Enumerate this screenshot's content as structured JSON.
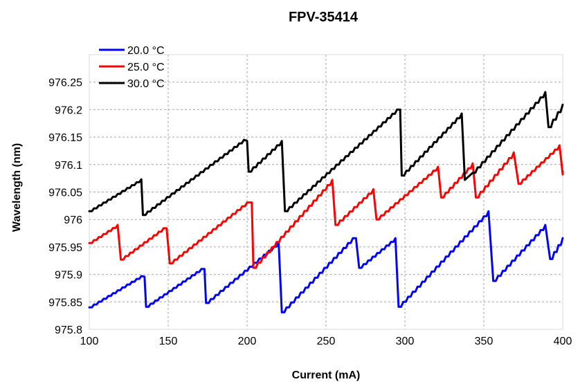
{
  "chart_data": {
    "type": "line",
    "title": "FPV-35414",
    "xlabel": "Current (mA)",
    "ylabel": "Wavelength (nm)",
    "xlim": [
      100,
      400
    ],
    "ylim": [
      975.8,
      976.3
    ],
    "xticks": [
      100,
      150,
      200,
      250,
      300,
      350,
      400
    ],
    "xtick_labels": [
      "100",
      "150",
      "200",
      "250",
      "300",
      "350",
      "400"
    ],
    "yticks": [
      975.8,
      975.85,
      975.9,
      975.95,
      976.0,
      976.05,
      976.1,
      976.15,
      976.2,
      976.25
    ],
    "ytick_labels": [
      "975.8",
      "975.85",
      "975.9",
      "975.95",
      "976",
      "976.05",
      "976.1",
      "976.15",
      "976.2",
      "976.25"
    ],
    "grid": true,
    "legend_position": "top-left",
    "series": [
      {
        "name": "20.0 °C",
        "color": "#0000ff",
        "segments": [
          [
            [
              100,
              975.84
            ],
            [
              133,
              975.897
            ],
            [
              135,
              975.896
            ]
          ],
          [
            [
              136,
              975.841
            ],
            [
              171,
              975.91
            ],
            [
              173,
              975.91
            ]
          ],
          [
            [
              174,
              975.848
            ],
            [
              220,
              975.958
            ]
          ],
          [
            [
              222,
              975.831
            ],
            [
              267,
              975.966
            ],
            [
              269,
              975.966
            ]
          ],
          [
            [
              271,
              975.912
            ],
            [
              294,
              975.966
            ]
          ],
          [
            [
              296,
              975.841
            ],
            [
              353,
              976.015
            ]
          ],
          [
            [
              356,
              975.888
            ],
            [
              389,
              975.99
            ]
          ],
          [
            [
              392,
              975.928
            ],
            [
              400,
              975.966
            ]
          ]
        ]
      },
      {
        "name": "25.0 °C",
        "color": "#ff0000",
        "segments": [
          [
            [
              100,
              975.957
            ],
            [
              118,
              975.99
            ]
          ],
          [
            [
              120,
              975.927
            ],
            [
              147,
              975.984
            ],
            [
              149,
              975.984
            ]
          ],
          [
            [
              151,
              975.92
            ],
            [
              200,
              976.031
            ],
            [
              203,
              976.031
            ]
          ],
          [
            [
              204,
              975.912
            ],
            [
              254,
              976.072
            ]
          ],
          [
            [
              256,
              975.99
            ],
            [
              280,
              976.055
            ]
          ],
          [
            [
              282,
              976.0
            ],
            [
              321,
              976.096
            ]
          ],
          [
            [
              323,
              976.04
            ],
            [
              343,
              976.102
            ]
          ],
          [
            [
              345,
              976.04
            ],
            [
              369,
              976.122
            ]
          ],
          [
            [
              372,
              976.065
            ],
            [
              398,
              976.135
            ]
          ],
          [
            [
              400,
              976.082
            ],
            [
              400,
              976.088
            ]
          ]
        ]
      },
      {
        "name": "30.0 °C",
        "color": "#000000",
        "segments": [
          [
            [
              100,
              976.015
            ],
            [
              133,
              976.073
            ]
          ],
          [
            [
              134,
              976.008
            ],
            [
              198,
              976.145
            ],
            [
              200,
              976.143
            ]
          ],
          [
            [
              201,
              976.087
            ],
            [
              222,
              976.143
            ]
          ],
          [
            [
              224,
              976.015
            ],
            [
              295,
              976.2
            ],
            [
              297,
              976.2
            ]
          ],
          [
            [
              298,
              976.08
            ],
            [
              336,
              976.193
            ]
          ],
          [
            [
              338,
              976.072
            ],
            [
              343,
              976.085
            ],
            [
              389,
              976.232
            ]
          ],
          [
            [
              391,
              976.168
            ],
            [
              400,
              976.209
            ]
          ]
        ]
      }
    ]
  }
}
